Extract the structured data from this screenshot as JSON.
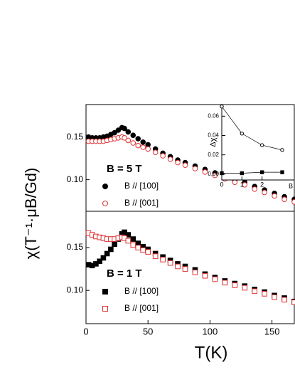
{
  "chart_data": [
    {
      "type": "scatter",
      "y_label": "χ(T⁻¹·μB/Gd)",
      "annotation": "B = 5 T",
      "x": [
        2,
        5,
        8,
        11,
        14,
        17,
        20,
        23,
        26,
        29,
        31,
        34,
        38,
        42,
        46,
        50,
        56,
        62,
        68,
        74,
        80,
        88,
        96,
        104,
        112,
        120,
        128,
        136,
        144,
        152,
        160,
        168
      ],
      "xlim": [
        0,
        168
      ],
      "ylim": [
        0.063,
        0.188
      ],
      "yticks": [
        {
          "value": 0.1,
          "label": "0.10"
        },
        0.15
      ],
      "series": [
        {
          "name": "B // [100]",
          "color": "#000000",
          "marker": "circle",
          "filled": true,
          "values": [
            0.15,
            0.149,
            0.149,
            0.149,
            0.15,
            0.151,
            0.153,
            0.155,
            0.158,
            0.161,
            0.16,
            0.156,
            0.152,
            0.148,
            0.144,
            0.141,
            0.136,
            0.131,
            0.127,
            0.123,
            0.12,
            0.116,
            0.112,
            0.108,
            0.104,
            0.1,
            0.097,
            0.092,
            0.088,
            0.084,
            0.08,
            0.077
          ]
        },
        {
          "name": "B // [001]",
          "color": "#e03030",
          "marker": "circle",
          "filled": false,
          "values": [
            0.145,
            0.145,
            0.145,
            0.145,
            0.145,
            0.146,
            0.147,
            0.148,
            0.149,
            0.15,
            0.149,
            0.146,
            0.143,
            0.14,
            0.138,
            0.136,
            0.132,
            0.128,
            0.124,
            0.12,
            0.117,
            0.113,
            0.109,
            0.105,
            0.101,
            0.097,
            0.094,
            0.089,
            0.085,
            0.081,
            0.077,
            0.074
          ]
        }
      ]
    },
    {
      "type": "scatter",
      "x_label": "T(K)",
      "annotation": "B = 1 T",
      "x": [
        2,
        5,
        8,
        11,
        14,
        17,
        20,
        23,
        26,
        29,
        31,
        34,
        38,
        42,
        46,
        50,
        56,
        62,
        68,
        74,
        80,
        88,
        96,
        104,
        112,
        120,
        128,
        136,
        144,
        152,
        160,
        168
      ],
      "xlim": [
        0,
        168
      ],
      "ylim": [
        0.061,
        0.1925
      ],
      "xticks": [
        0,
        50,
        100,
        150
      ],
      "yticks": [
        {
          "value": 0.1,
          "label": "0.10"
        },
        0.15
      ],
      "series": [
        {
          "name": "B // [100]",
          "color": "#000000",
          "marker": "square",
          "filled": true,
          "values": [
            0.13,
            0.129,
            0.131,
            0.134,
            0.138,
            0.143,
            0.148,
            0.154,
            0.16,
            0.166,
            0.168,
            0.165,
            0.16,
            0.155,
            0.151,
            0.148,
            0.143,
            0.139,
            0.135,
            0.131,
            0.128,
            0.124,
            0.119,
            0.115,
            0.111,
            0.108,
            0.105,
            0.101,
            0.098,
            0.094,
            0.091,
            0.087
          ]
        },
        {
          "name": "B // [001]",
          "color": "#e03030",
          "marker": "square",
          "filled": false,
          "values": [
            0.167,
            0.165,
            0.163,
            0.162,
            0.161,
            0.16,
            0.16,
            0.16,
            0.161,
            0.162,
            0.161,
            0.158,
            0.153,
            0.15,
            0.147,
            0.145,
            0.14,
            0.136,
            0.132,
            0.128,
            0.125,
            0.121,
            0.117,
            0.113,
            0.109,
            0.106,
            0.103,
            0.099,
            0.096,
            0.092,
            0.089,
            0.086
          ]
        }
      ]
    },
    {
      "type": "line",
      "x_label": "B",
      "y_label": "Δχ",
      "x": [
        0,
        1,
        2,
        3
      ],
      "xlim": [
        0,
        3.6
      ],
      "ylim": [
        -0.006,
        0.072
      ],
      "xticks": [
        0,
        1,
        2
      ],
      "yticks": [
        {
          "value": 0,
          "label": "0.00"
        },
        {
          "value": 0.02,
          "label": "0.02"
        },
        {
          "value": 0.04,
          "label": "0.04"
        },
        {
          "value": 0.06,
          "label": "0.06"
        }
      ],
      "series": [
        {
          "color": "#000000",
          "marker": "circle",
          "filled": false,
          "values": [
            0.07,
            0.042,
            0.03,
            0.025
          ]
        },
        {
          "color": "#000000",
          "marker": "square",
          "filled": true,
          "values": [
            0.001,
            0.001,
            0.002,
            0.002
          ]
        }
      ]
    }
  ]
}
